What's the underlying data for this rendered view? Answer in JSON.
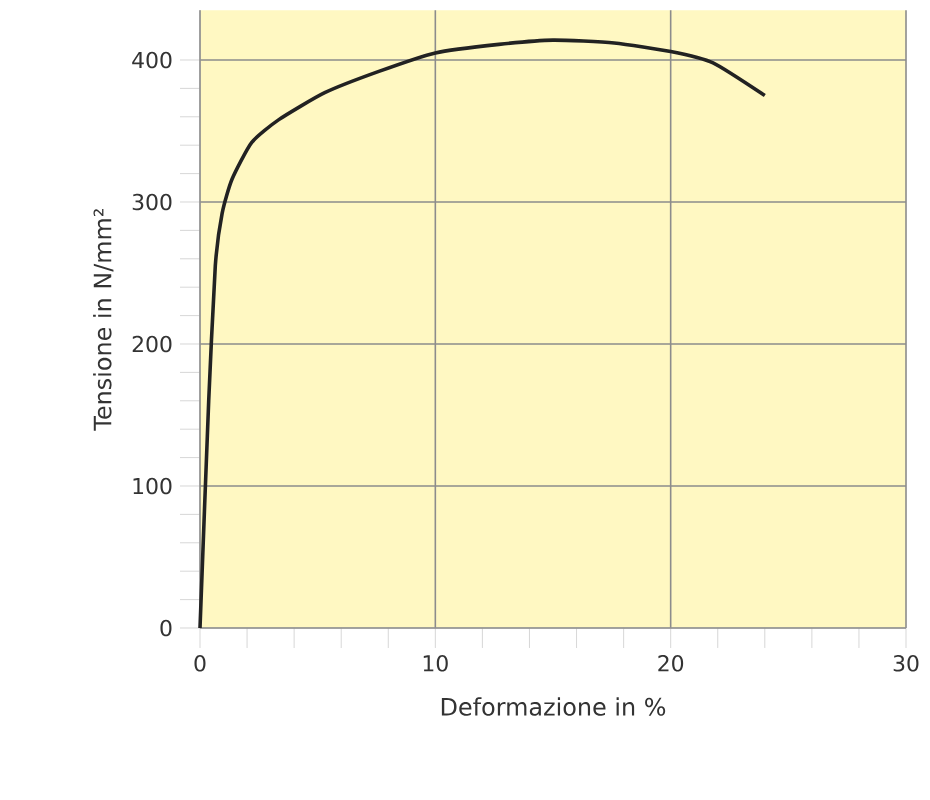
{
  "chart_data": {
    "type": "line",
    "xlabel": "Deformazione in %",
    "ylabel": "Tensione in N/mm²",
    "x": [
      0,
      0.37,
      0.65,
      0.94,
      1.36,
      2.2,
      3.35,
      5.3,
      7.6,
      10,
      12.7,
      15,
      17.6,
      20,
      21.8,
      24
    ],
    "series": [
      {
        "color": "#222222",
        "values": [
          0,
          160,
          255,
          292,
          316,
          342,
          358,
          377,
          392,
          405,
          411,
          414,
          412,
          406,
          398,
          375
        ]
      }
    ],
    "xlim": [
      0,
      30
    ],
    "ylim": [
      0,
      435
    ],
    "xticks": [
      0,
      10,
      20,
      30
    ],
    "yticks": [
      0,
      100,
      200,
      300,
      400
    ],
    "grid": true,
    "marker": "none",
    "line_style": "solid"
  }
}
